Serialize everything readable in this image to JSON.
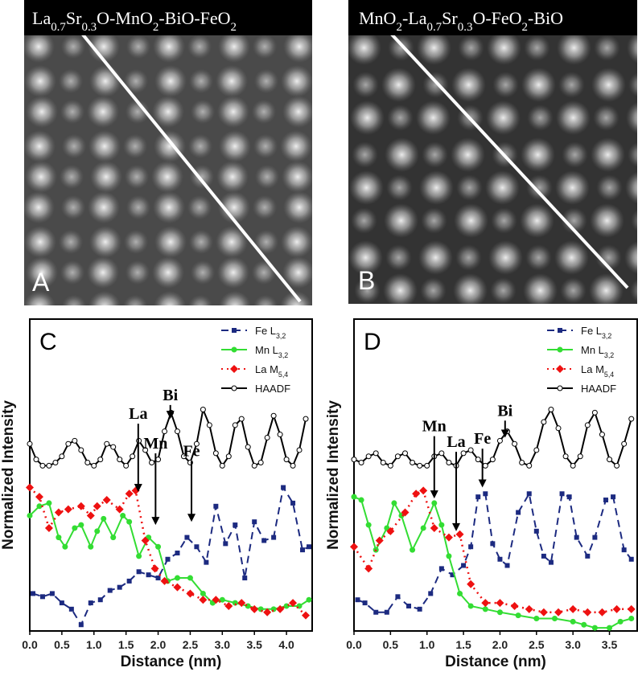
{
  "panels": [
    {
      "label": "A",
      "title": "La0.7Sr0.3O-MnO2-BiO-FeO2"
    },
    {
      "label": "B",
      "title": "MnO2-La0.7Sr0.3O-FeO2-BiO"
    }
  ],
  "chart_data": [
    {
      "type": "line",
      "label": "C",
      "xlabel": "Distance (nm)",
      "ylabel": "Normalized Intensity",
      "xlim": [
        0,
        4.4
      ],
      "ylim": [
        0,
        1
      ],
      "xticks": [
        {
          "value": 0,
          "label": "0.0"
        },
        0.5,
        {
          "value": 1,
          "label": "1.0"
        },
        1.5,
        {
          "value": 2,
          "label": "2.0"
        },
        2.5,
        {
          "value": 3,
          "label": "3.0"
        },
        3.5,
        {
          "value": 4,
          "label": "4.0"
        }
      ],
      "legend": "upper right",
      "series": [
        {
          "name": "Fe L3,2",
          "color": "#1c2a80",
          "marker": "square",
          "line": "dashed",
          "x": [
            0.05,
            0.2,
            0.35,
            0.5,
            0.65,
            0.8,
            0.95,
            1.1,
            1.25,
            1.4,
            1.55,
            1.7,
            1.85,
            2.0,
            2.15,
            2.3,
            2.45,
            2.6,
            2.75,
            2.9,
            3.05,
            3.2,
            3.35,
            3.5,
            3.65,
            3.8,
            3.95,
            4.1,
            4.25,
            4.35
          ],
          "values": [
            0.12,
            0.11,
            0.12,
            0.09,
            0.07,
            0.02,
            0.09,
            0.1,
            0.13,
            0.14,
            0.16,
            0.19,
            0.18,
            0.17,
            0.23,
            0.25,
            0.3,
            0.27,
            0.22,
            0.4,
            0.28,
            0.34,
            0.17,
            0.35,
            0.29,
            0.3,
            0.46,
            0.41,
            0.26,
            0.27
          ]
        },
        {
          "name": "Mn L3,2",
          "color": "#33dd33",
          "marker": "circle",
          "line": "solid",
          "x": [
            0.0,
            0.15,
            0.3,
            0.45,
            0.55,
            0.7,
            0.8,
            0.95,
            1.05,
            1.15,
            1.3,
            1.45,
            1.55,
            1.7,
            1.85,
            2.0,
            2.15,
            2.3,
            2.5,
            2.7,
            2.85,
            3.0,
            3.2,
            3.4,
            3.6,
            3.8,
            4.0,
            4.2,
            4.35
          ],
          "values": [
            0.37,
            0.4,
            0.41,
            0.3,
            0.27,
            0.33,
            0.34,
            0.27,
            0.32,
            0.36,
            0.3,
            0.37,
            0.35,
            0.24,
            0.3,
            0.27,
            0.16,
            0.17,
            0.17,
            0.12,
            0.09,
            0.1,
            0.09,
            0.08,
            0.07,
            0.07,
            0.08,
            0.08,
            0.1
          ]
        },
        {
          "name": "La M5,4",
          "color": "#ee1111",
          "marker": "diamond",
          "line": "dotted",
          "x": [
            0.0,
            0.15,
            0.3,
            0.45,
            0.6,
            0.8,
            0.95,
            1.05,
            1.2,
            1.4,
            1.55,
            1.65,
            1.8,
            1.95,
            2.1,
            2.3,
            2.5,
            2.7,
            2.9,
            3.1,
            3.3,
            3.5,
            3.7,
            3.9,
            4.1,
            4.3
          ],
          "values": [
            0.46,
            0.43,
            0.33,
            0.38,
            0.39,
            0.4,
            0.37,
            0.4,
            0.42,
            0.39,
            0.44,
            0.45,
            0.29,
            0.2,
            0.16,
            0.14,
            0.12,
            0.1,
            0.1,
            0.08,
            0.09,
            0.07,
            0.06,
            0.07,
            0.09,
            0.05
          ]
        },
        {
          "name": "HAADF",
          "color": "#000000",
          "marker": "open-circle",
          "line": "solid",
          "x": [
            0.0,
            0.1,
            0.2,
            0.3,
            0.4,
            0.5,
            0.6,
            0.7,
            0.8,
            0.9,
            1.0,
            1.1,
            1.2,
            1.3,
            1.4,
            1.5,
            1.6,
            1.7,
            1.8,
            1.9,
            2.0,
            2.1,
            2.2,
            2.3,
            2.4,
            2.5,
            2.6,
            2.7,
            2.8,
            2.9,
            3.0,
            3.1,
            3.2,
            3.3,
            3.4,
            3.5,
            3.6,
            3.7,
            3.8,
            3.9,
            4.0,
            4.1,
            4.2,
            4.3
          ],
          "values": [
            0.6,
            0.55,
            0.53,
            0.53,
            0.54,
            0.56,
            0.6,
            0.61,
            0.58,
            0.54,
            0.53,
            0.55,
            0.6,
            0.59,
            0.55,
            0.53,
            0.56,
            0.61,
            0.58,
            0.54,
            0.55,
            0.64,
            0.7,
            0.64,
            0.56,
            0.54,
            0.6,
            0.71,
            0.66,
            0.57,
            0.53,
            0.56,
            0.66,
            0.68,
            0.59,
            0.53,
            0.54,
            0.62,
            0.69,
            0.63,
            0.55,
            0.53,
            0.58,
            0.68
          ]
        }
      ],
      "annotations": [
        {
          "text": "La",
          "x": 1.69,
          "y": 0.446,
          "text_y": 0.68
        },
        {
          "text": "Mn",
          "x": 1.96,
          "y": 0.34,
          "text_y": 0.585
        },
        {
          "text": "Bi",
          "x": 2.19,
          "y": 0.68,
          "text_y": 0.74
        },
        {
          "text": "Fe",
          "x": 2.52,
          "y": 0.35,
          "text_y": 0.56
        }
      ]
    },
    {
      "type": "line",
      "label": "D",
      "xlabel": "Distance (nm)",
      "ylabel": "Normalized Intensity",
      "xlim": [
        0,
        3.88
      ],
      "ylim": [
        0,
        1
      ],
      "xticks": [
        {
          "value": 0,
          "label": "0.0"
        },
        0.5,
        {
          "value": 1,
          "label": "1.0"
        },
        1.5,
        {
          "value": 2,
          "label": "2.0"
        },
        2.5,
        {
          "value": 3,
          "label": "3.0"
        },
        3.5
      ],
      "legend": "upper right",
      "series": [
        {
          "name": "Fe L3,2",
          "color": "#1c2a80",
          "marker": "square",
          "line": "dashed",
          "x": [
            0.05,
            0.15,
            0.3,
            0.45,
            0.6,
            0.75,
            0.9,
            1.05,
            1.2,
            1.35,
            1.5,
            1.6,
            1.7,
            1.8,
            1.9,
            2.0,
            2.1,
            2.25,
            2.4,
            2.5,
            2.6,
            2.7,
            2.85,
            2.95,
            3.05,
            3.2,
            3.3,
            3.45,
            3.55,
            3.7,
            3.8
          ],
          "values": [
            0.1,
            0.09,
            0.06,
            0.06,
            0.11,
            0.08,
            0.07,
            0.12,
            0.2,
            0.18,
            0.21,
            0.27,
            0.43,
            0.44,
            0.28,
            0.23,
            0.21,
            0.38,
            0.44,
            0.32,
            0.24,
            0.22,
            0.44,
            0.43,
            0.3,
            0.24,
            0.3,
            0.42,
            0.43,
            0.26,
            0.23
          ]
        },
        {
          "name": "Mn L3,2",
          "color": "#33dd33",
          "marker": "circle",
          "line": "solid",
          "x": [
            0.0,
            0.1,
            0.2,
            0.3,
            0.45,
            0.55,
            0.65,
            0.8,
            0.95,
            1.1,
            1.2,
            1.3,
            1.45,
            1.6,
            1.8,
            2.0,
            2.25,
            2.5,
            2.75,
            3.0,
            3.15,
            3.3,
            3.5,
            3.65,
            3.8
          ],
          "values": [
            0.43,
            0.42,
            0.34,
            0.26,
            0.33,
            0.41,
            0.37,
            0.26,
            0.33,
            0.41,
            0.34,
            0.24,
            0.12,
            0.08,
            0.07,
            0.06,
            0.05,
            0.04,
            0.04,
            0.03,
            0.02,
            0.01,
            0.01,
            0.03,
            0.04
          ]
        },
        {
          "name": "La M5,4",
          "color": "#ee1111",
          "marker": "diamond",
          "line": "dotted",
          "x": [
            0.0,
            0.2,
            0.35,
            0.5,
            0.7,
            0.85,
            0.95,
            1.1,
            1.3,
            1.45,
            1.6,
            1.8,
            2.0,
            2.2,
            2.4,
            2.6,
            2.8,
            3.0,
            3.2,
            3.4,
            3.6,
            3.8
          ],
          "values": [
            0.27,
            0.2,
            0.29,
            0.32,
            0.38,
            0.44,
            0.45,
            0.33,
            0.3,
            0.31,
            0.15,
            0.09,
            0.09,
            0.08,
            0.07,
            0.06,
            0.06,
            0.07,
            0.06,
            0.06,
            0.07,
            0.07
          ]
        },
        {
          "name": "HAADF",
          "color": "#000000",
          "marker": "open-circle",
          "line": "solid",
          "x": [
            0.0,
            0.1,
            0.2,
            0.3,
            0.4,
            0.5,
            0.6,
            0.7,
            0.8,
            0.9,
            1.0,
            1.1,
            1.2,
            1.3,
            1.4,
            1.5,
            1.6,
            1.7,
            1.8,
            1.9,
            2.0,
            2.1,
            2.2,
            2.3,
            2.4,
            2.5,
            2.6,
            2.7,
            2.8,
            2.9,
            3.0,
            3.1,
            3.2,
            3.3,
            3.4,
            3.5,
            3.6,
            3.7,
            3.8
          ],
          "values": [
            0.55,
            0.54,
            0.56,
            0.57,
            0.54,
            0.53,
            0.56,
            0.57,
            0.54,
            0.53,
            0.53,
            0.56,
            0.57,
            0.54,
            0.53,
            0.57,
            0.58,
            0.55,
            0.53,
            0.55,
            0.61,
            0.64,
            0.6,
            0.54,
            0.53,
            0.58,
            0.67,
            0.71,
            0.65,
            0.56,
            0.53,
            0.56,
            0.66,
            0.7,
            0.63,
            0.55,
            0.53,
            0.6,
            0.68
          ]
        }
      ],
      "annotations": [
        {
          "text": "Mn",
          "x": 1.1,
          "y": 0.425,
          "text_y": 0.64
        },
        {
          "text": "La",
          "x": 1.4,
          "y": 0.32,
          "text_y": 0.59
        },
        {
          "text": "Fe",
          "x": 1.76,
          "y": 0.46,
          "text_y": 0.6
        },
        {
          "text": "Bi",
          "x": 2.07,
          "y": 0.62,
          "text_y": 0.69
        }
      ]
    }
  ]
}
